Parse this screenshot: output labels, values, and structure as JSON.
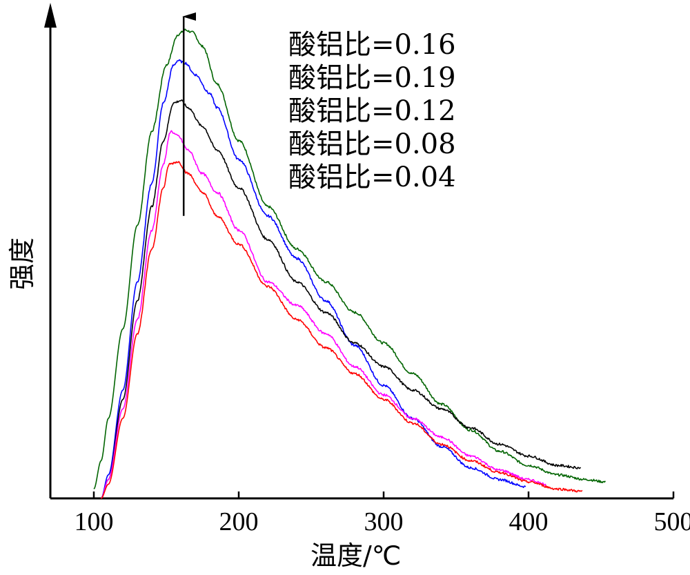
{
  "chart_data": {
    "type": "line",
    "title": "",
    "xlabel": "温度/℃",
    "ylabel": "强度",
    "xlim": [
      70,
      500
    ],
    "ylim": [
      0,
      100
    ],
    "x_ticks": [
      100,
      200,
      300,
      400,
      500
    ],
    "legend_position": "top-right",
    "arrow_annotation": {
      "x": 162,
      "from_y": 60,
      "to_y": 105,
      "meaning": "increasing peak intensity"
    },
    "series": [
      {
        "name": "酸铝比=0.16",
        "color": "#006400",
        "points": [
          [
            100,
            2
          ],
          [
            105,
            8
          ],
          [
            110,
            17
          ],
          [
            120,
            36
          ],
          [
            130,
            58
          ],
          [
            140,
            78
          ],
          [
            150,
            92
          ],
          [
            158,
            98.5
          ],
          [
            163,
            99.5
          ],
          [
            168,
            99
          ],
          [
            175,
            96
          ],
          [
            185,
            88
          ],
          [
            200,
            76
          ],
          [
            220,
            62
          ],
          [
            240,
            53
          ],
          [
            260,
            46
          ],
          [
            280,
            39.5
          ],
          [
            300,
            33
          ],
          [
            320,
            26.5
          ],
          [
            340,
            20
          ],
          [
            360,
            14.5
          ],
          [
            380,
            10
          ],
          [
            400,
            7
          ],
          [
            420,
            5
          ],
          [
            440,
            4
          ],
          [
            453,
            3.5
          ]
        ]
      },
      {
        "name": "酸铝比=0.19",
        "color": "#0000ff",
        "points": [
          [
            105,
            0
          ],
          [
            110,
            5
          ],
          [
            120,
            23
          ],
          [
            130,
            46
          ],
          [
            140,
            67
          ],
          [
            148,
            84
          ],
          [
            155,
            92
          ],
          [
            158,
            93
          ],
          [
            163,
            92.5
          ],
          [
            170,
            90
          ],
          [
            180,
            86
          ],
          [
            185,
            83
          ],
          [
            200,
            72
          ],
          [
            220,
            60
          ],
          [
            240,
            51
          ],
          [
            260,
            42
          ],
          [
            280,
            32.5
          ],
          [
            300,
            24
          ],
          [
            320,
            17
          ],
          [
            340,
            11
          ],
          [
            360,
            6.5
          ],
          [
            380,
            4
          ],
          [
            398,
            2.5
          ]
        ]
      },
      {
        "name": "酸铝比=0.12",
        "color": "#000000",
        "points": [
          [
            105,
            0
          ],
          [
            110,
            4
          ],
          [
            120,
            21
          ],
          [
            130,
            42
          ],
          [
            140,
            62
          ],
          [
            148,
            76
          ],
          [
            155,
            84
          ],
          [
            160,
            84.5
          ],
          [
            165,
            83
          ],
          [
            175,
            79
          ],
          [
            185,
            74
          ],
          [
            200,
            66
          ],
          [
            220,
            55
          ],
          [
            240,
            46
          ],
          [
            260,
            39.5
          ],
          [
            280,
            33
          ],
          [
            300,
            28
          ],
          [
            320,
            23
          ],
          [
            340,
            19
          ],
          [
            360,
            15
          ],
          [
            380,
            11.5
          ],
          [
            400,
            9
          ],
          [
            420,
            7
          ],
          [
            436,
            6.5
          ]
        ]
      },
      {
        "name": "酸铝比=0.08",
        "color": "#ff00ff",
        "points": [
          [
            105,
            0
          ],
          [
            110,
            4
          ],
          [
            120,
            19
          ],
          [
            130,
            38
          ],
          [
            140,
            57
          ],
          [
            148,
            71
          ],
          [
            153,
            78
          ],
          [
            158,
            77
          ],
          [
            165,
            74
          ],
          [
            175,
            69
          ],
          [
            185,
            65
          ],
          [
            200,
            57
          ],
          [
            220,
            46
          ],
          [
            240,
            41
          ],
          [
            260,
            35
          ],
          [
            280,
            28
          ],
          [
            300,
            22
          ],
          [
            320,
            17
          ],
          [
            340,
            13
          ],
          [
            360,
            9
          ],
          [
            380,
            6
          ],
          [
            400,
            4
          ],
          [
            412,
            3
          ]
        ]
      },
      {
        "name": "酸铝比=0.04",
        "color": "#ff0000",
        "points": [
          [
            105,
            0
          ],
          [
            110,
            3
          ],
          [
            120,
            17
          ],
          [
            130,
            35
          ],
          [
            140,
            53
          ],
          [
            148,
            66
          ],
          [
            152,
            71
          ],
          [
            158,
            71.5
          ],
          [
            165,
            69
          ],
          [
            175,
            65
          ],
          [
            185,
            60
          ],
          [
            200,
            54
          ],
          [
            220,
            45
          ],
          [
            240,
            38
          ],
          [
            260,
            32
          ],
          [
            280,
            26.5
          ],
          [
            300,
            21
          ],
          [
            320,
            16
          ],
          [
            340,
            11.5
          ],
          [
            360,
            8
          ],
          [
            380,
            5.5
          ],
          [
            400,
            3.5
          ],
          [
            420,
            2
          ],
          [
            437,
            1.5
          ]
        ]
      }
    ],
    "legend_order": [
      "酸铝比=0.16",
      "酸铝比=0.19",
      "酸铝比=0.12",
      "酸铝比=0.08",
      "酸铝比=0.04"
    ]
  }
}
